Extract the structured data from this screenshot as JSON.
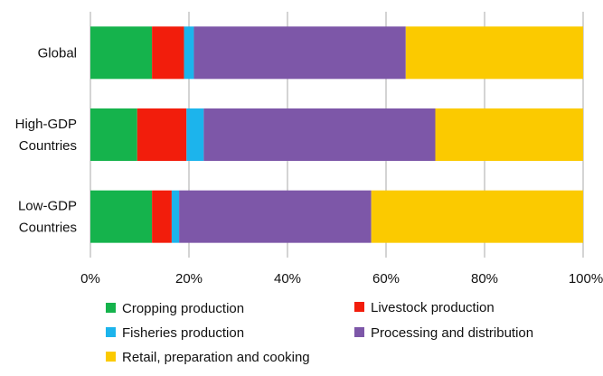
{
  "chart_data": {
    "type": "bar",
    "orientation": "horizontal",
    "stacked": true,
    "categories": [
      [
        "Global"
      ],
      [
        "High-GDP",
        "Countries"
      ],
      [
        "Low-GDP",
        "Countries"
      ]
    ],
    "series": [
      {
        "name": "Cropping production",
        "color": "#15b34c",
        "values": [
          12.5,
          9.5,
          12.5
        ]
      },
      {
        "name": "Livestock production",
        "color": "#f21d0c",
        "values": [
          6.5,
          10.0,
          4.0
        ]
      },
      {
        "name": "Fisheries production",
        "color": "#1cb4ec",
        "values": [
          2.0,
          3.5,
          1.5
        ]
      },
      {
        "name": "Processing and distribution",
        "color": "#7d57a8",
        "values": [
          43.0,
          47.0,
          39.0
        ]
      },
      {
        "name": "Retail, preparation and cooking",
        "color": "#fbca00",
        "values": [
          36.0,
          30.0,
          43.0
        ]
      }
    ],
    "x_ticks": [
      "0%",
      "20%",
      "40%",
      "60%",
      "80%",
      "100%"
    ],
    "xlim": [
      0,
      100
    ],
    "grid": "vertical",
    "legend_position": "bottom"
  }
}
